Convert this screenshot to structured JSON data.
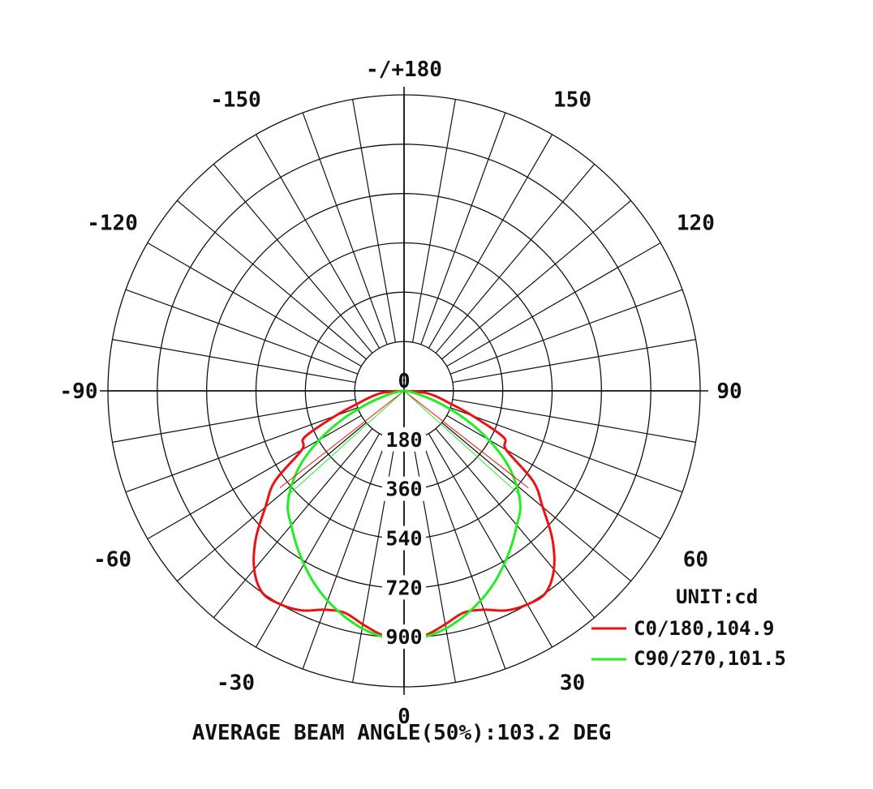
{
  "chart_data": {
    "type": "polar",
    "unit_label": "UNIT:cd",
    "footer": "AVERAGE BEAM ANGLE(50%):103.2 DEG",
    "radial_ticks": [
      "0",
      "180",
      "360",
      "540",
      "720",
      "900"
    ],
    "radial_values": [
      0,
      180,
      360,
      540,
      720,
      900
    ],
    "radial_max": 1080,
    "angle_labels": [
      {
        "deg": 180,
        "text": "-/+180"
      },
      {
        "deg": -150,
        "text": "-150"
      },
      {
        "deg": 150,
        "text": "150"
      },
      {
        "deg": -120,
        "text": "-120"
      },
      {
        "deg": 120,
        "text": "120"
      },
      {
        "deg": -90,
        "text": "-90"
      },
      {
        "deg": 90,
        "text": "90"
      },
      {
        "deg": -60,
        "text": "-60"
      },
      {
        "deg": 60,
        "text": "60"
      },
      {
        "deg": -30,
        "text": "-30"
      },
      {
        "deg": 30,
        "text": "30"
      },
      {
        "deg": 0,
        "text": "0"
      }
    ],
    "grid": true,
    "legend_position": "bottom-right",
    "series": [
      {
        "name": "C0/180,104.9",
        "color": "#ee1111",
        "angles": [
          0,
          5,
          10,
          15,
          20,
          25,
          30,
          35,
          40,
          45,
          50,
          55,
          60,
          65,
          70,
          75,
          80,
          85,
          90
        ],
        "values": [
          905,
          895,
          865,
          838,
          850,
          884,
          900,
          900,
          850,
          765,
          660,
          575,
          430,
          400,
          265,
          170,
          120,
          75,
          0
        ]
      },
      {
        "name": "C90/270,101.5",
        "color": "#22ee22",
        "angles": [
          0,
          5,
          10,
          15,
          20,
          25,
          30,
          35,
          40,
          45,
          50,
          55,
          60,
          65,
          70,
          75,
          80,
          85,
          90
        ],
        "values": [
          905,
          900,
          880,
          850,
          815,
          775,
          730,
          685,
          640,
          600,
          535,
          455,
          355,
          250,
          150,
          75,
          30,
          10,
          0
        ]
      }
    ]
  }
}
